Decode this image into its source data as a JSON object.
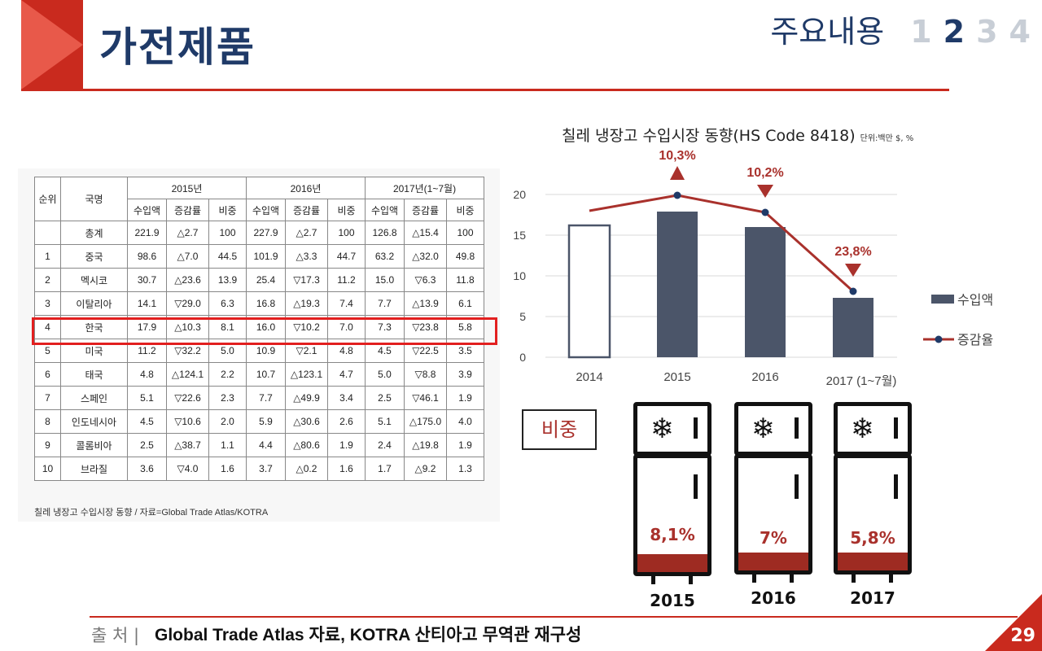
{
  "header": {
    "title": "가전제품",
    "toc_label": "주요내용",
    "toc_numbers": [
      "1",
      "2",
      "3",
      "4"
    ],
    "toc_active": "2"
  },
  "table": {
    "col_rank": "순위",
    "col_country": "국명",
    "years": [
      "2015년",
      "2016년",
      "2017년(1~7월)"
    ],
    "sub_cols": [
      "수입액",
      "증감률",
      "비중"
    ],
    "rows": [
      {
        "rank": "",
        "country": "총계",
        "v": [
          "221.9",
          "△2.7",
          "100",
          "227.9",
          "△2.7",
          "100",
          "126.8",
          "△15.4",
          "100"
        ]
      },
      {
        "rank": "1",
        "country": "중국",
        "v": [
          "98.6",
          "△7.0",
          "44.5",
          "101.9",
          "△3.3",
          "44.7",
          "63.2",
          "△32.0",
          "49.8"
        ]
      },
      {
        "rank": "2",
        "country": "멕시코",
        "v": [
          "30.7",
          "△23.6",
          "13.9",
          "25.4",
          "▽17.3",
          "11.2",
          "15.0",
          "▽6.3",
          "11.8"
        ]
      },
      {
        "rank": "3",
        "country": "이탈리아",
        "v": [
          "14.1",
          "▽29.0",
          "6.3",
          "16.8",
          "△19.3",
          "7.4",
          "7.7",
          "△13.9",
          "6.1"
        ]
      },
      {
        "rank": "4",
        "country": "한국",
        "v": [
          "17.9",
          "△10.3",
          "8.1",
          "16.0",
          "▽10.2",
          "7.0",
          "7.3",
          "▽23.8",
          "5.8"
        ]
      },
      {
        "rank": "5",
        "country": "미국",
        "v": [
          "11.2",
          "▽32.2",
          "5.0",
          "10.9",
          "▽2.1",
          "4.8",
          "4.5",
          "▽22.5",
          "3.5"
        ]
      },
      {
        "rank": "6",
        "country": "태국",
        "v": [
          "4.8",
          "△124.1",
          "2.2",
          "10.7",
          "△123.1",
          "4.7",
          "5.0",
          "▽8.8",
          "3.9"
        ]
      },
      {
        "rank": "7",
        "country": "스페인",
        "v": [
          "5.1",
          "▽22.6",
          "2.3",
          "7.7",
          "△49.9",
          "3.4",
          "2.5",
          "▽46.1",
          "1.9"
        ]
      },
      {
        "rank": "8",
        "country": "인도네시아",
        "v": [
          "4.5",
          "▽10.6",
          "2.0",
          "5.9",
          "△30.6",
          "2.6",
          "5.1",
          "△175.0",
          "4.0"
        ]
      },
      {
        "rank": "9",
        "country": "콜롬비아",
        "v": [
          "2.5",
          "△38.7",
          "1.1",
          "4.4",
          "△80.6",
          "1.9",
          "2.4",
          "△19.8",
          "1.9"
        ]
      },
      {
        "rank": "10",
        "country": "브라질",
        "v": [
          "3.6",
          "▽4.0",
          "1.6",
          "3.7",
          "△0.2",
          "1.6",
          "1.7",
          "△9.2",
          "1.3"
        ]
      }
    ],
    "note": "칠레 냉장고 수입시장 동향 / 자료=Global Trade Atlas/KOTRA"
  },
  "chart_data": {
    "type": "bar",
    "title": "칠레 냉장고 수입시장 동향(HS Code 8418)",
    "unit_note": "단위:백만 $, %",
    "categories": [
      "2014",
      "2015",
      "2016",
      "2017  (1~7월)"
    ],
    "ylim": [
      0,
      20
    ],
    "yticks": [
      "0",
      "5",
      "10",
      "15",
      "20"
    ],
    "series": [
      {
        "name": "수입액",
        "type": "bar",
        "values": [
          16.2,
          17.9,
          16.0,
          7.3
        ]
      },
      {
        "name": "증감율",
        "type": "line",
        "values": [
          18.0,
          19.9,
          17.8,
          8.1
        ]
      }
    ],
    "annotations": [
      {
        "category": "2015",
        "label": "10,3%",
        "direction": "up"
      },
      {
        "category": "2016",
        "label": "10,2%",
        "direction": "down"
      },
      {
        "category": "2017  (1~7월)",
        "label": "23,8%",
        "direction": "down"
      }
    ],
    "colors": {
      "bar": "#4b5569",
      "bar_outline": "#4b5569",
      "line": "#a9312c",
      "marker": "#1f3a68",
      "annotation": "#a9312c"
    },
    "legend": "right",
    "grid": true
  },
  "share": {
    "label": "비중",
    "items": [
      {
        "year": "2015",
        "pct": "8,1%"
      },
      {
        "year": "2016",
        "pct": "7%"
      },
      {
        "year": "2017",
        "pct": "5,8%"
      }
    ]
  },
  "footer": {
    "source_label": "출 처 |",
    "source_text": "Global Trade Atlas 자료, KOTRA 산티아고 무역관 재구성",
    "page": "29"
  }
}
